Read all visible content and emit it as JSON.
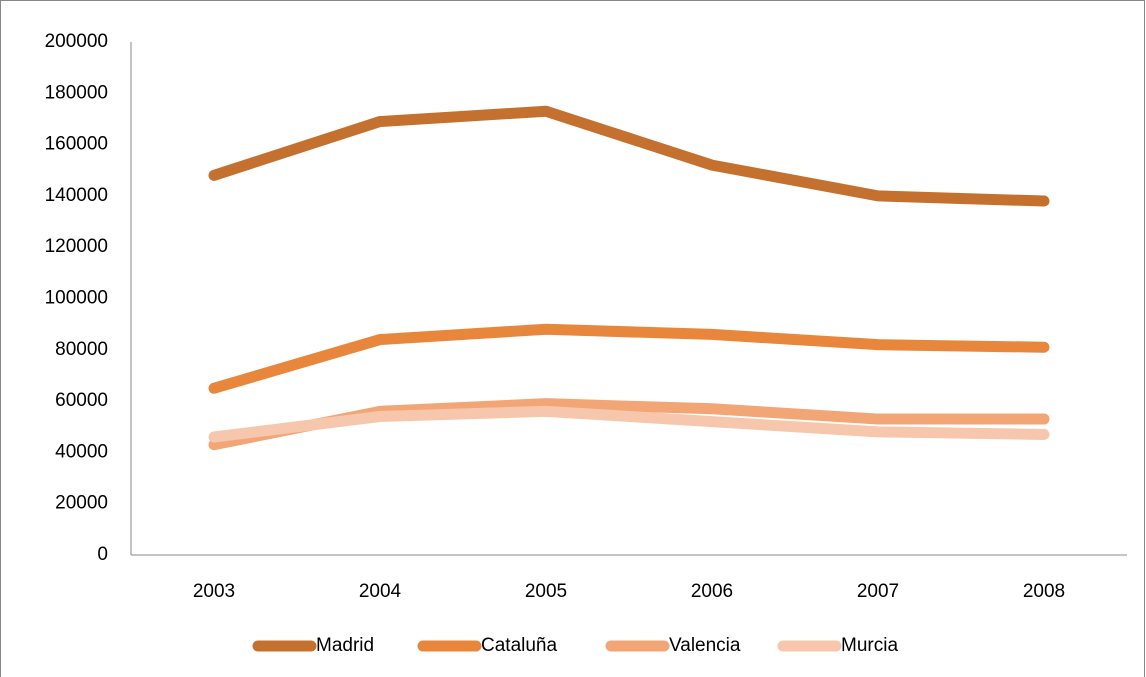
{
  "chart_data": {
    "type": "line",
    "categories": [
      "2003",
      "2004",
      "2005",
      "2006",
      "2007",
      "2008"
    ],
    "series": [
      {
        "name": "Madrid",
        "color": "#c4712f",
        "values": [
          148000,
          169000,
          173000,
          152000,
          140000,
          138000
        ]
      },
      {
        "name": "Cataluña",
        "color": "#e8873c",
        "values": [
          65000,
          84000,
          88000,
          86000,
          82000,
          81000
        ]
      },
      {
        "name": "Valencia",
        "color": "#f3a675",
        "values": [
          43000,
          56000,
          59000,
          57000,
          53000,
          53000
        ]
      },
      {
        "name": "Murcia",
        "color": "#f6c7ad",
        "values": [
          46000,
          54000,
          56000,
          52000,
          48000,
          47000
        ]
      }
    ],
    "ylim": [
      0,
      200000
    ],
    "yticks": [
      0,
      20000,
      40000,
      60000,
      80000,
      100000,
      120000,
      140000,
      160000,
      180000,
      200000
    ],
    "grid": false,
    "legend": "bottom"
  }
}
